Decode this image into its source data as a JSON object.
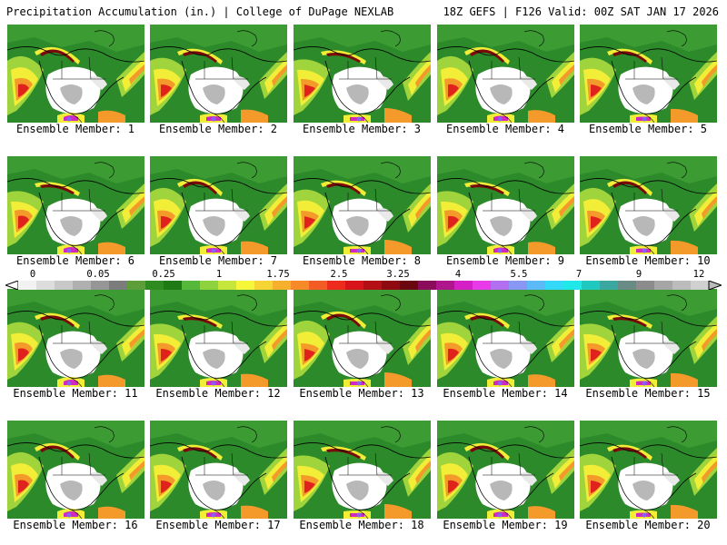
{
  "header": {
    "left": "Precipitation Accumulation (in.) | College of DuPage NEXLAB",
    "right": "18Z GEFS | F126 Valid: 00Z SAT JAN 17 2026"
  },
  "panels": [
    {
      "label": "Ensemble Member: 1"
    },
    {
      "label": "Ensemble Member: 2"
    },
    {
      "label": "Ensemble Member: 3"
    },
    {
      "label": "Ensemble Member: 4"
    },
    {
      "label": "Ensemble Member: 5"
    },
    {
      "label": "Ensemble Member: 6"
    },
    {
      "label": "Ensemble Member: 7"
    },
    {
      "label": "Ensemble Member: 8"
    },
    {
      "label": "Ensemble Member: 9"
    },
    {
      "label": "Ensemble Member: 10"
    },
    {
      "label": "Ensemble Member: 11"
    },
    {
      "label": "Ensemble Member: 12"
    },
    {
      "label": "Ensemble Member: 13"
    },
    {
      "label": "Ensemble Member: 14"
    },
    {
      "label": "Ensemble Member: 15"
    },
    {
      "label": "Ensemble Member: 16"
    },
    {
      "label": "Ensemble Member: 17"
    },
    {
      "label": "Ensemble Member: 18"
    },
    {
      "label": "Ensemble Member: 19"
    },
    {
      "label": "Ensemble Member: 20"
    }
  ],
  "legend": {
    "ticks": [
      "0",
      "0.05",
      "0.25",
      "1",
      "1.75",
      "2.5",
      "3.25",
      "4",
      "5.5",
      "7",
      "9",
      "12"
    ],
    "colors": [
      "#f2f2f2",
      "#dddddd",
      "#c8c8c8",
      "#b0b0b0",
      "#969696",
      "#7c7c7c",
      "#5e9e3a",
      "#2e8b20",
      "#1f7a16",
      "#56b83a",
      "#8ed23e",
      "#c6e63c",
      "#f6f63a",
      "#f6d433",
      "#f7b02d",
      "#f68a28",
      "#f35c22",
      "#ee2a1c",
      "#d8141a",
      "#b40f14",
      "#8e0a10",
      "#6a0610",
      "#8a0c5a",
      "#b0168c",
      "#d420c4",
      "#e83ae8",
      "#b46ef0",
      "#8896f4",
      "#5cbaf6",
      "#34d8f8",
      "#20e8e8",
      "#20c8c0",
      "#3aa8a0",
      "#6a8a86",
      "#8c8c8c",
      "#a6a6a6",
      "#bcbcbc",
      "#d0d0d0"
    ]
  },
  "map_colors": {
    "green_dark": "#2c8a2a",
    "green": "#3d9b33",
    "yellow_green": "#9fd43c",
    "yellow": "#f2ee38",
    "orange": "#f39a2a",
    "red": "#e0221c",
    "dark_red": "#7a0a0a",
    "magenta": "#d028c0",
    "purple": "#8a5ef0",
    "light_gray": "#e9e9e9",
    "gray": "#b8b8b8",
    "white": "#ffffff"
  }
}
